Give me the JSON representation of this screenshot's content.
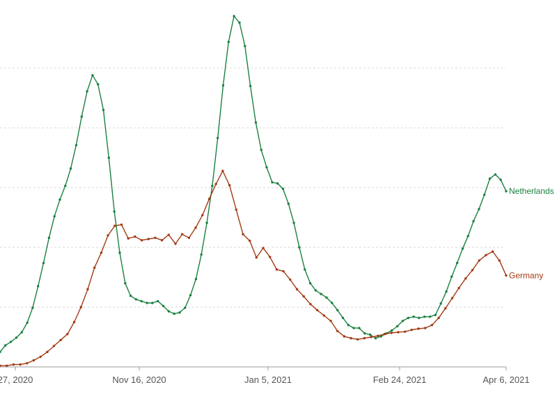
{
  "chart_data": {
    "type": "line",
    "title": "",
    "xlabel": "",
    "ylabel": "",
    "x_tick_labels": [
      "27, 2020",
      "Nov 16, 2020",
      "Jan 5, 2021",
      "Feb 24, 2021",
      "Apr 6, 2021"
    ],
    "grid": true,
    "legend": "inline-right",
    "series": [
      {
        "name": "Netherlands",
        "color": "#1a8040",
        "values": [
          2.5,
          3.6,
          4.2,
          4.9,
          5.8,
          7.4,
          9.9,
          13.5,
          17.4,
          21.6,
          25.2,
          28.0,
          30.3,
          33.2,
          37.1,
          41.9,
          46.1,
          48.8,
          47.3,
          43.0,
          35.0,
          26.0,
          19.1,
          14.0,
          11.9,
          11.3,
          11.0,
          10.7,
          10.7,
          11.0,
          10.2,
          9.3,
          8.9,
          9.1,
          9.9,
          12.0,
          14.7,
          18.8,
          24.1,
          30.3,
          38.3,
          47.1,
          54.4,
          58.7,
          57.6,
          53.7,
          47.0,
          40.9,
          36.3,
          33.4,
          30.9,
          30.7,
          29.8,
          27.3,
          24.1,
          20.0,
          16.3,
          14.0,
          12.8,
          12.2,
          11.6,
          10.7,
          9.5,
          8.2,
          7.0,
          6.5,
          6.5,
          5.6,
          5.4,
          4.8,
          5.1,
          5.6,
          6.1,
          6.8,
          7.7,
          8.2,
          8.4,
          8.2,
          8.4,
          8.4,
          8.7,
          10.6,
          12.6,
          15.1,
          17.4,
          19.8,
          21.9,
          24.4,
          26.4,
          28.8,
          31.5,
          32.2,
          31.3,
          29.4
        ]
      },
      {
        "name": "Germany",
        "color": "#a33a14",
        "values": [
          0.2,
          0.2,
          0.4,
          0.4,
          0.6,
          1.1,
          1.7,
          2.5,
          3.5,
          4.5,
          5.5,
          7.5,
          10.0,
          13.0,
          16.6,
          19.1,
          22.0,
          23.6,
          23.8,
          21.5,
          21.8,
          21.2,
          21.4,
          21.6,
          21.2,
          22.1,
          20.6,
          22.2,
          21.6,
          23.3,
          25.4,
          28.1,
          30.6,
          32.8,
          30.4,
          26.3,
          22.2,
          21.1,
          18.3,
          19.9,
          18.4,
          16.3,
          16.0,
          14.6,
          13.0,
          11.8,
          10.5,
          9.5,
          8.6,
          7.7,
          6.0,
          5.1,
          4.8,
          4.6,
          4.8,
          5.0,
          5.2,
          5.5,
          5.7,
          5.8,
          5.9,
          6.2,
          6.4,
          6.5,
          7.0,
          8.2,
          9.8,
          11.5,
          13.2,
          14.8,
          16.2,
          17.8,
          18.7,
          19.3,
          17.8,
          15.3
        ]
      }
    ]
  }
}
